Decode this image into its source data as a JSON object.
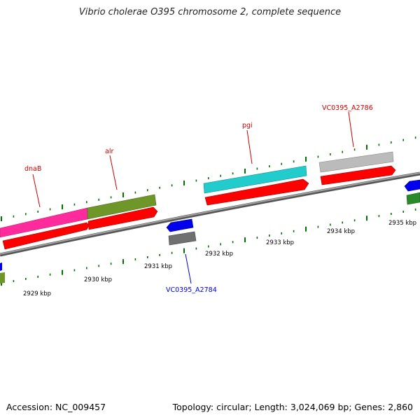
{
  "header": {
    "title": "Vibrio cholerae O395 chromosome 2, complete sequence"
  },
  "footer": {
    "accession": "Accession: NC_009457",
    "summary": "Topology: circular; Length: 3,024,069 bp; Genes: 2,860"
  },
  "map": {
    "kbp_labels": [
      "2929 kbp",
      "2930 kbp",
      "2931 kbp",
      "2932 kbp",
      "2933 kbp",
      "2934 kbp",
      "2935 kbp"
    ],
    "gene_labels": [
      "dnaB",
      "alr",
      "pgi",
      "VC0395_A2786",
      "VC0395_A2784"
    ],
    "colors": {
      "backbone": "#8a8a8a",
      "tick": "#007000",
      "label_forward": "#cc0000",
      "label_reverse": "#0000cc",
      "dnaB": "#ff2b9c",
      "alr": "#6f9628",
      "pgi": "#22cccc",
      "VC0395_A2786": "#bbbbbb",
      "VC0395_A2784": "#707070",
      "cds": "#ff0000",
      "reverse_cds": "#0000ee",
      "right_edge_gene": "#2a8a2a"
    }
  }
}
